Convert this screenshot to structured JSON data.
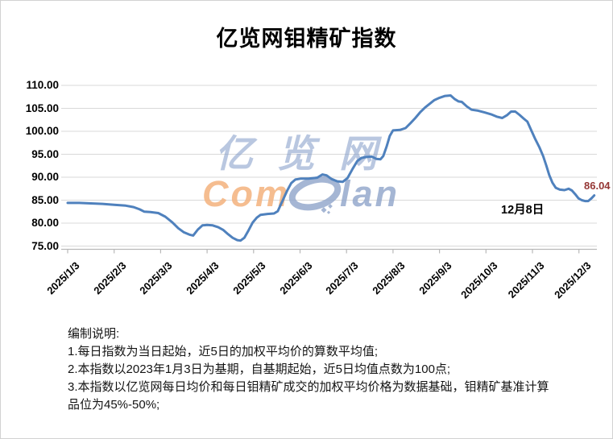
{
  "chart_data": {
    "type": "line",
    "title": "亿览网钼精矿指数",
    "ylabel": "",
    "xlabel": "",
    "ylim": [
      75,
      110
    ],
    "grid": "horizontal",
    "legend": "none",
    "line_color": "#4f81bd",
    "grid_color": "#d9d9d9",
    "axis_color": "#b8b8b8",
    "y_ticks": [
      "110.00",
      "105.00",
      "100.00",
      "95.00",
      "90.00",
      "85.00",
      "80.00",
      "75.00"
    ],
    "x_ticks": [
      "2025/1/3",
      "2025/2/3",
      "2025/3/3",
      "2025/4/3",
      "2025/5/3",
      "2025/6/3",
      "2025/7/3",
      "2025/8/3",
      "2025/9/3",
      "2025/10/3",
      "2025/11/3",
      "2025/12/3"
    ],
    "series_name": "钼精矿指数",
    "points": [
      {
        "date": "2025/1/3",
        "t": 0.0,
        "v": 84.4
      },
      {
        "date": "2025/1/11",
        "t": 0.25,
        "v": 84.4
      },
      {
        "date": "2025/1/18",
        "t": 0.5,
        "v": 84.3
      },
      {
        "date": "2025/1/26",
        "t": 0.75,
        "v": 84.2
      },
      {
        "date": "2025/2/3",
        "t": 1.0,
        "v": 84.0
      },
      {
        "date": "2025/2/11",
        "t": 1.25,
        "v": 83.8
      },
      {
        "date": "2025/2/16",
        "t": 1.42,
        "v": 83.5
      },
      {
        "date": "2025/2/20",
        "t": 1.55,
        "v": 83.0
      },
      {
        "date": "2025/2/23",
        "t": 1.65,
        "v": 82.5
      },
      {
        "date": "2025/2/26",
        "t": 1.78,
        "v": 82.4
      },
      {
        "date": "2025/3/1",
        "t": 1.95,
        "v": 82.2
      },
      {
        "date": "2025/3/6",
        "t": 2.1,
        "v": 81.4
      },
      {
        "date": "2025/3/11",
        "t": 2.25,
        "v": 80.2
      },
      {
        "date": "2025/3/14",
        "t": 2.38,
        "v": 78.9
      },
      {
        "date": "2025/3/18",
        "t": 2.5,
        "v": 78.0
      },
      {
        "date": "2025/3/22",
        "t": 2.62,
        "v": 77.5
      },
      {
        "date": "2025/3/24",
        "t": 2.7,
        "v": 77.3
      },
      {
        "date": "2025/3/27",
        "t": 2.8,
        "v": 78.6
      },
      {
        "date": "2025/3/30",
        "t": 2.9,
        "v": 79.5
      },
      {
        "date": "2025/4/3",
        "t": 3.0,
        "v": 79.6
      },
      {
        "date": "2025/4/7",
        "t": 3.12,
        "v": 79.5
      },
      {
        "date": "2025/4/10",
        "t": 3.24,
        "v": 79.1
      },
      {
        "date": "2025/4/14",
        "t": 3.35,
        "v": 78.5
      },
      {
        "date": "2025/4/17",
        "t": 3.45,
        "v": 77.6
      },
      {
        "date": "2025/4/20",
        "t": 3.55,
        "v": 76.8
      },
      {
        "date": "2025/4/23",
        "t": 3.65,
        "v": 76.3
      },
      {
        "date": "2025/4/25",
        "t": 3.72,
        "v": 76.2
      },
      {
        "date": "2025/4/27",
        "t": 3.8,
        "v": 76.8
      },
      {
        "date": "2025/4/30",
        "t": 3.89,
        "v": 78.4
      },
      {
        "date": "2025/5/2",
        "t": 3.98,
        "v": 80.1
      },
      {
        "date": "2025/5/5",
        "t": 4.07,
        "v": 81.2
      },
      {
        "date": "2025/5/8",
        "t": 4.15,
        "v": 81.8
      },
      {
        "date": "2025/5/12",
        "t": 4.3,
        "v": 82.0
      },
      {
        "date": "2025/5/16",
        "t": 4.44,
        "v": 82.1
      },
      {
        "date": "2025/5/19",
        "t": 4.52,
        "v": 82.6
      },
      {
        "date": "2025/5/22",
        "t": 4.62,
        "v": 84.8
      },
      {
        "date": "2025/5/25",
        "t": 4.72,
        "v": 87.0
      },
      {
        "date": "2025/5/27",
        "t": 4.81,
        "v": 88.7
      },
      {
        "date": "2025/5/30",
        "t": 4.9,
        "v": 89.5
      },
      {
        "date": "2025/6/4",
        "t": 5.02,
        "v": 89.7
      },
      {
        "date": "2025/6/8",
        "t": 5.18,
        "v": 89.7
      },
      {
        "date": "2025/6/14",
        "t": 5.37,
        "v": 89.9
      },
      {
        "date": "2025/6/17",
        "t": 5.48,
        "v": 90.6
      },
      {
        "date": "2025/6/20",
        "t": 5.57,
        "v": 90.4
      },
      {
        "date": "2025/6/23",
        "t": 5.68,
        "v": 89.6
      },
      {
        "date": "2025/6/27",
        "t": 5.8,
        "v": 89.1
      },
      {
        "date": "2025/6/30",
        "t": 5.92,
        "v": 89.0
      },
      {
        "date": "2025/7/4",
        "t": 6.02,
        "v": 89.8
      },
      {
        "date": "2025/7/7",
        "t": 6.13,
        "v": 91.8
      },
      {
        "date": "2025/7/10",
        "t": 6.23,
        "v": 93.5
      },
      {
        "date": "2025/7/13",
        "t": 6.32,
        "v": 94.2
      },
      {
        "date": "2025/7/16",
        "t": 6.42,
        "v": 94.4
      },
      {
        "date": "2025/7/19",
        "t": 6.54,
        "v": 94.5
      },
      {
        "date": "2025/7/22",
        "t": 6.64,
        "v": 94.0
      },
      {
        "date": "2025/7/25",
        "t": 6.73,
        "v": 93.9
      },
      {
        "date": "2025/7/27",
        "t": 6.79,
        "v": 94.6
      },
      {
        "date": "2025/7/29",
        "t": 6.86,
        "v": 96.6
      },
      {
        "date": "2025/7/31",
        "t": 6.93,
        "v": 99.0
      },
      {
        "date": "2025/8/3",
        "t": 7.0,
        "v": 100.2
      },
      {
        "date": "2025/8/8",
        "t": 7.15,
        "v": 100.3
      },
      {
        "date": "2025/8/11",
        "t": 7.27,
        "v": 100.7
      },
      {
        "date": "2025/8/14",
        "t": 7.38,
        "v": 101.8
      },
      {
        "date": "2025/8/17",
        "t": 7.48,
        "v": 102.9
      },
      {
        "date": "2025/8/20",
        "t": 7.58,
        "v": 104.1
      },
      {
        "date": "2025/8/24",
        "t": 7.69,
        "v": 105.2
      },
      {
        "date": "2025/8/27",
        "t": 7.79,
        "v": 106.0
      },
      {
        "date": "2025/8/30",
        "t": 7.89,
        "v": 106.8
      },
      {
        "date": "2025/9/3",
        "t": 8.0,
        "v": 107.3
      },
      {
        "date": "2025/9/7",
        "t": 8.12,
        "v": 107.7
      },
      {
        "date": "2025/9/10",
        "t": 8.24,
        "v": 107.8
      },
      {
        "date": "2025/9/13",
        "t": 8.33,
        "v": 107.0
      },
      {
        "date": "2025/9/15",
        "t": 8.41,
        "v": 106.5
      },
      {
        "date": "2025/9/17",
        "t": 8.48,
        "v": 106.4
      },
      {
        "date": "2025/9/21",
        "t": 8.59,
        "v": 105.4
      },
      {
        "date": "2025/9/24",
        "t": 8.69,
        "v": 104.7
      },
      {
        "date": "2025/9/28",
        "t": 8.83,
        "v": 104.5
      },
      {
        "date": "2025/10/2",
        "t": 8.97,
        "v": 104.1
      },
      {
        "date": "2025/10/6",
        "t": 9.11,
        "v": 103.7
      },
      {
        "date": "2025/10/10",
        "t": 9.23,
        "v": 103.2
      },
      {
        "date": "2025/10/14",
        "t": 9.35,
        "v": 102.9
      },
      {
        "date": "2025/10/17",
        "t": 9.45,
        "v": 103.5
      },
      {
        "date": "2025/10/19",
        "t": 9.54,
        "v": 104.3
      },
      {
        "date": "2025/10/22",
        "t": 9.63,
        "v": 104.3
      },
      {
        "date": "2025/10/25",
        "t": 9.72,
        "v": 103.6
      },
      {
        "date": "2025/10/28",
        "t": 9.82,
        "v": 102.7
      },
      {
        "date": "2025/10/30",
        "t": 9.89,
        "v": 102.1
      },
      {
        "date": "2025/11/2",
        "t": 9.98,
        "v": 100.1
      },
      {
        "date": "2025/11/5",
        "t": 10.06,
        "v": 98.3
      },
      {
        "date": "2025/11/8",
        "t": 10.15,
        "v": 96.5
      },
      {
        "date": "2025/11/10",
        "t": 10.23,
        "v": 94.6
      },
      {
        "date": "2025/11/12",
        "t": 10.3,
        "v": 92.5
      },
      {
        "date": "2025/11/14",
        "t": 10.36,
        "v": 90.5
      },
      {
        "date": "2025/11/16",
        "t": 10.43,
        "v": 88.8
      },
      {
        "date": "2025/11/18",
        "t": 10.5,
        "v": 87.7
      },
      {
        "date": "2025/11/21",
        "t": 10.59,
        "v": 87.3
      },
      {
        "date": "2025/11/24",
        "t": 10.69,
        "v": 87.2
      },
      {
        "date": "2025/11/26",
        "t": 10.78,
        "v": 87.5
      },
      {
        "date": "2025/11/28",
        "t": 10.85,
        "v": 87.1
      },
      {
        "date": "2025/11/30",
        "t": 10.92,
        "v": 86.3
      },
      {
        "date": "2025/12/3",
        "t": 10.99,
        "v": 85.4
      },
      {
        "date": "2025/12/4",
        "t": 11.06,
        "v": 85.0
      },
      {
        "date": "2025/12/5",
        "t": 11.13,
        "v": 84.8
      },
      {
        "date": "2025/12/6",
        "t": 11.2,
        "v": 84.8
      },
      {
        "date": "2025/12/7",
        "t": 11.27,
        "v": 85.4
      },
      {
        "date": "2025/12/8",
        "t": 11.33,
        "v": 86.04
      }
    ],
    "annotations": {
      "last_value": "86.04",
      "last_value_color": "#953735",
      "last_date": "12月8日"
    }
  },
  "watermark": {
    "line1": "亿览网",
    "word_left": "Com",
    "word_right": "lan",
    "globe_icon_color": "rgba(143,164,201,0.8)"
  },
  "notes": {
    "lines": [
      "编制说明:",
      "1.每日指数为当日起始，近5日的加权平均价的算数平均值;",
      "2.本指数以2023年1月3日为基期，自基期起始，近5日均值点数为100点;",
      "3.本指数以亿览网每日均价和每日钼精矿成交的加权平均价格为数据基础，钼精矿基准计算",
      "品位为45%-50%;"
    ]
  }
}
